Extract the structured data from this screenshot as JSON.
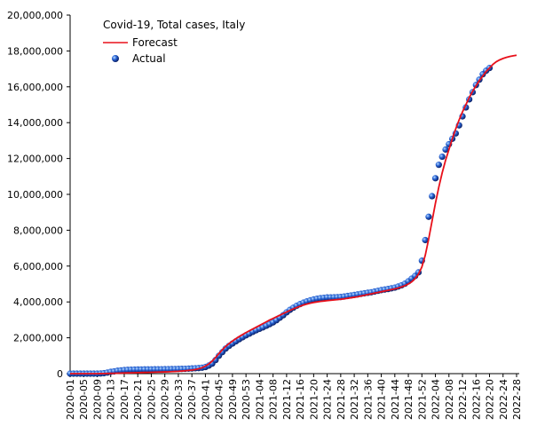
{
  "chart_data": {
    "type": "line",
    "title": "Covid-19, Total cases, Italy",
    "categories": [
      "2020-01",
      null,
      null,
      null,
      "2020-05",
      null,
      null,
      null,
      "2020-09",
      null,
      null,
      null,
      "2020-13",
      null,
      null,
      null,
      "2020-17",
      null,
      null,
      null,
      "2020-21",
      null,
      null,
      null,
      "2020-25",
      null,
      null,
      null,
      "2020-29",
      null,
      null,
      null,
      "2020-33",
      null,
      null,
      null,
      "2020-37",
      null,
      null,
      null,
      "2020-41",
      null,
      null,
      null,
      "2020-45",
      null,
      null,
      null,
      "2020-49",
      null,
      null,
      null,
      "2020-53",
      null,
      null,
      null,
      "2021-04",
      null,
      null,
      null,
      "2021-08",
      null,
      null,
      null,
      "2021-12",
      null,
      null,
      null,
      "2021-16",
      null,
      null,
      null,
      "2021-20",
      null,
      null,
      null,
      "2021-24",
      null,
      null,
      null,
      "2021-28",
      null,
      null,
      null,
      "2021-32",
      null,
      null,
      null,
      "2021-36",
      null,
      null,
      null,
      "2021-40",
      null,
      null,
      null,
      "2021-44",
      null,
      null,
      null,
      "2021-48",
      null,
      null,
      null,
      "2021-52",
      null,
      null,
      null,
      "2022-04",
      null,
      null,
      null,
      "2022-08",
      null,
      null,
      null,
      "2022-12",
      null,
      null,
      null,
      "2022-16",
      null,
      null,
      null,
      "2022-20",
      null,
      null,
      null,
      "2022-24",
      null,
      null,
      null,
      "2022-28"
    ],
    "series": [
      {
        "name": "Forecast",
        "type": "line",
        "color": "#e8101a",
        "values": [
          0,
          0,
          0,
          0,
          0,
          0,
          0,
          0,
          0,
          2000,
          5000,
          10000,
          15000,
          20000,
          25000,
          30000,
          35000,
          40000,
          45000,
          50000,
          55000,
          60000,
          65000,
          70000,
          75000,
          80000,
          85000,
          90000,
          95000,
          100000,
          110000,
          120000,
          130000,
          145000,
          160000,
          180000,
          200000,
          230000,
          270000,
          330000,
          420000,
          540000,
          700000,
          900000,
          1120000,
          1330000,
          1520000,
          1680000,
          1820000,
          1950000,
          2070000,
          2180000,
          2290000,
          2390000,
          2490000,
          2590000,
          2690000,
          2790000,
          2890000,
          2990000,
          3080000,
          3170000,
          3260000,
          3350000,
          3440000,
          3530000,
          3610000,
          3690000,
          3760000,
          3830000,
          3880000,
          3930000,
          3970000,
          4000000,
          4030000,
          4050000,
          4070000,
          4090000,
          4110000,
          4130000,
          4150000,
          4170000,
          4200000,
          4230000,
          4260000,
          4290000,
          4330000,
          4370000,
          4410000,
          4450000,
          4490000,
          4530000,
          4570000,
          4610000,
          4650000,
          4690000,
          4730000,
          4780000,
          4840000,
          4910000,
          5000000,
          5120000,
          5300000,
          5550000,
          5950000,
          6600000,
          7500000,
          8500000,
          9500000,
          10400000,
          11200000,
          11900000,
          12500000,
          13100000,
          13650000,
          14150000,
          14600000,
          15000000,
          15400000,
          15750000,
          16050000,
          16350000,
          16600000,
          16850000,
          17050000,
          17250000,
          17400000,
          17500000,
          17580000,
          17640000,
          17690000,
          17730000,
          17760000
        ]
      },
      {
        "name": "Actual",
        "type": "scatter",
        "color": "#1a4fc4",
        "values": [
          0,
          0,
          0,
          0,
          0,
          0,
          0,
          0,
          1000,
          10000,
          25000,
          60000,
          100000,
          125000,
          160000,
          180000,
          200000,
          210000,
          220000,
          227000,
          230000,
          232000,
          234000,
          236000,
          238000,
          240000,
          242000,
          245000,
          248000,
          251000,
          254000,
          257000,
          260000,
          265000,
          270000,
          280000,
          290000,
          300000,
          310000,
          330000,
          370000,
          450000,
          560000,
          760000,
          1000000,
          1200000,
          1400000,
          1550000,
          1680000,
          1800000,
          1920000,
          2030000,
          2140000,
          2230000,
          2330000,
          2420000,
          2500000,
          2580000,
          2670000,
          2760000,
          2860000,
          2980000,
          3120000,
          3260000,
          3420000,
          3560000,
          3680000,
          3790000,
          3880000,
          3960000,
          4030000,
          4090000,
          4140000,
          4180000,
          4210000,
          4230000,
          4250000,
          4255000,
          4260000,
          4265000,
          4275000,
          4300000,
          4330000,
          4360000,
          4390000,
          4420000,
          4450000,
          4480000,
          4510000,
          4540000,
          4580000,
          4620000,
          4660000,
          4690000,
          4720000,
          4760000,
          4800000,
          4860000,
          4930000,
          5020000,
          5150000,
          5300000,
          5450000,
          5650000,
          6300000,
          7450000,
          8750000,
          9900000,
          10900000,
          11650000,
          12100000,
          12500000,
          12800000,
          13100000,
          13400000,
          13850000,
          14350000,
          14850000,
          15300000,
          15700000,
          16100000,
          16400000,
          16700000,
          16900000,
          17050000,
          null,
          null,
          null,
          null,
          null,
          null,
          null,
          null
        ]
      }
    ],
    "ylim": [
      0,
      20000000
    ],
    "yticks": [
      0,
      {
        "value": 2000000,
        "label": "2,000,000"
      },
      {
        "value": 4000000,
        "label": "4,000,000"
      },
      {
        "value": 6000000,
        "label": "6,000,000"
      },
      {
        "value": 8000000,
        "label": "8,000,000"
      },
      {
        "value": 10000000,
        "label": "10,000,000"
      },
      {
        "value": 12000000,
        "label": "12,000,000"
      },
      {
        "value": 14000000,
        "label": "14,000,000"
      },
      {
        "value": 16000000,
        "label": "16,000,000"
      },
      {
        "value": 18000000,
        "label": "18,000,000"
      },
      {
        "value": 20000000,
        "label": "20,000,000"
      }
    ],
    "grid": false,
    "legend": "top-left"
  }
}
